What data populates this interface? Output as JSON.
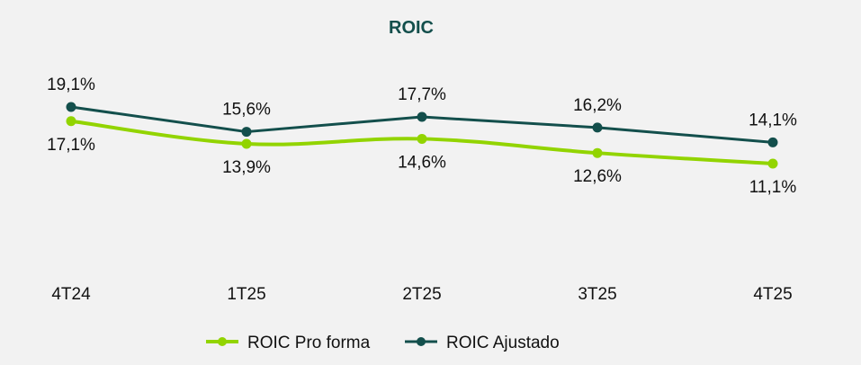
{
  "chart_data": {
    "type": "line",
    "title": "ROIC",
    "categories": [
      "4T24",
      "1T25",
      "2T25",
      "3T25",
      "4T25"
    ],
    "series": [
      {
        "name": "ROIC Pro forma",
        "values": [
          17.1,
          13.9,
          14.6,
          12.6,
          11.1
        ],
        "labels": [
          "17,1%",
          "13,9%",
          "14,6%",
          "12,6%",
          "11,1%"
        ],
        "color": "#92d400",
        "smooth": true
      },
      {
        "name": "ROIC Ajustado",
        "values": [
          19.1,
          15.6,
          17.7,
          16.2,
          14.1
        ],
        "labels": [
          "19,1%",
          "15,6%",
          "17,7%",
          "16,2%",
          "14,1%"
        ],
        "color": "#134f4c",
        "smooth": false
      }
    ],
    "legend_position": "bottom",
    "grid": false,
    "title_color": "#134f4c"
  }
}
